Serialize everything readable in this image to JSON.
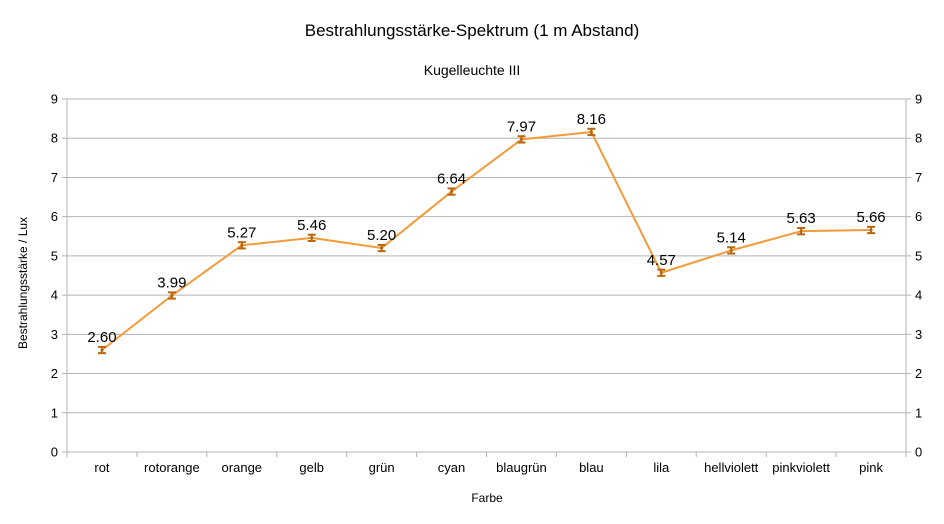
{
  "chart_data": {
    "type": "line",
    "title": "Bestrahlungsstärke-Spektrum (1 m Abstand)",
    "subtitle": "Kugelleuchte III",
    "xlabel": "Farbe",
    "ylabel": "Bestrahlungsstärke / Lux",
    "ylim": [
      0,
      9
    ],
    "yticks": [
      "0",
      "1",
      "2",
      "3",
      "4",
      "5",
      "6",
      "7",
      "8",
      "9"
    ],
    "secondary_y_axis": true,
    "grid": true,
    "categories": [
      "rot",
      "rotorange",
      "orange",
      "gelb",
      "grün",
      "cyan",
      "blaugrün",
      "blau",
      "lila",
      "hellviolett",
      "pinkviolett",
      "pink"
    ],
    "series": [
      {
        "values": [
          2.6,
          3.99,
          5.27,
          5.46,
          5.2,
          6.64,
          7.97,
          8.16,
          4.57,
          5.14,
          5.63,
          5.66
        ],
        "labels": [
          "2.60",
          "3.99",
          "5.27",
          "5.46",
          "5.20",
          "6.64",
          "7.97",
          "8.16",
          "4.57",
          "5.14",
          "5.63",
          "5.66"
        ],
        "error": 0.08,
        "color": "#F39A3A",
        "error_color": "#B8660F"
      }
    ],
    "colors": {
      "grid": "#B3B3B3",
      "axis": "#B3B3B3"
    }
  }
}
